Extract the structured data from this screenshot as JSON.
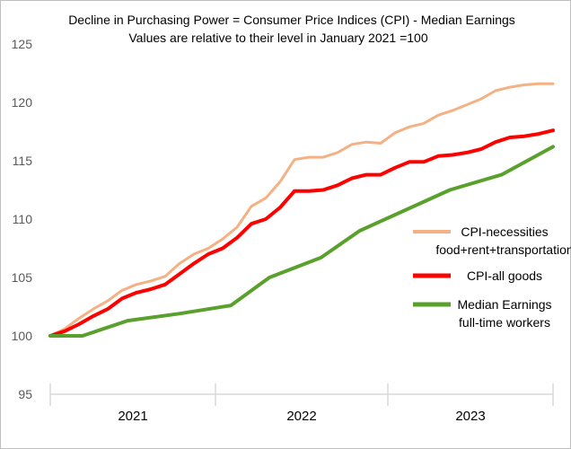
{
  "chart_data": {
    "type": "line",
    "title": [
      "Decline in Purchasing Power = Consumer Price Indices (CPI) - Median Earnings",
      "Values are relative to their level in January 2021 =100"
    ],
    "xlabel": "",
    "ylabel": "",
    "ylim": [
      95,
      125
    ],
    "yticks": [
      "95",
      "100",
      "105",
      "110",
      "115",
      "120",
      "125"
    ],
    "x_period_labels": [
      "2021",
      "2022",
      "2023"
    ],
    "x_months_per_year": 12,
    "x_range": [
      0,
      35
    ],
    "grid": false,
    "legend_position": "right",
    "series": [
      {
        "name": "CPI-necessities food+rent+transportation",
        "legend_lines": [
          "CPI-necessities",
          "food+rent+transportation"
        ],
        "color": "#F4B183",
        "values": [
          100.0,
          100.6,
          101.5,
          102.3,
          103.0,
          103.9,
          104.4,
          104.7,
          105.1,
          106.2,
          107.0,
          107.5,
          108.3,
          109.3,
          111.1,
          111.8,
          113.2,
          115.1,
          115.3,
          115.3,
          115.7,
          116.4,
          116.6,
          116.5,
          117.4,
          117.9,
          118.2,
          118.9,
          119.3,
          119.8,
          120.3,
          121.0,
          121.3,
          121.5,
          121.6,
          121.6
        ]
      },
      {
        "name": "CPI-all goods",
        "legend_lines": [
          "CPI-all goods"
        ],
        "color": "#FF0000",
        "values": [
          100.0,
          100.4,
          101.0,
          101.7,
          102.3,
          103.2,
          103.7,
          104.0,
          104.4,
          105.3,
          106.2,
          107.0,
          107.5,
          108.4,
          109.6,
          110.0,
          111.0,
          112.4,
          112.4,
          112.5,
          112.9,
          113.5,
          113.8,
          113.8,
          114.4,
          114.9,
          114.9,
          115.4,
          115.5,
          115.7,
          116.0,
          116.6,
          117.0,
          117.1,
          117.3,
          117.6
        ]
      },
      {
        "name": "Median Earnings full-time workers",
        "legend_lines": [
          "Median Earnings",
          "full-time workers"
        ],
        "color": "#5AA02C",
        "points": [
          [
            0,
            100.0
          ],
          [
            2.5,
            100.0
          ],
          [
            6,
            101.3
          ],
          [
            10,
            101.9
          ],
          [
            14,
            102.6
          ],
          [
            17,
            105.0
          ],
          [
            21,
            106.7
          ],
          [
            24,
            109.0
          ],
          [
            31,
            112.5
          ],
          [
            35,
            113.8
          ],
          [
            39,
            116.2
          ]
        ]
      }
    ]
  }
}
